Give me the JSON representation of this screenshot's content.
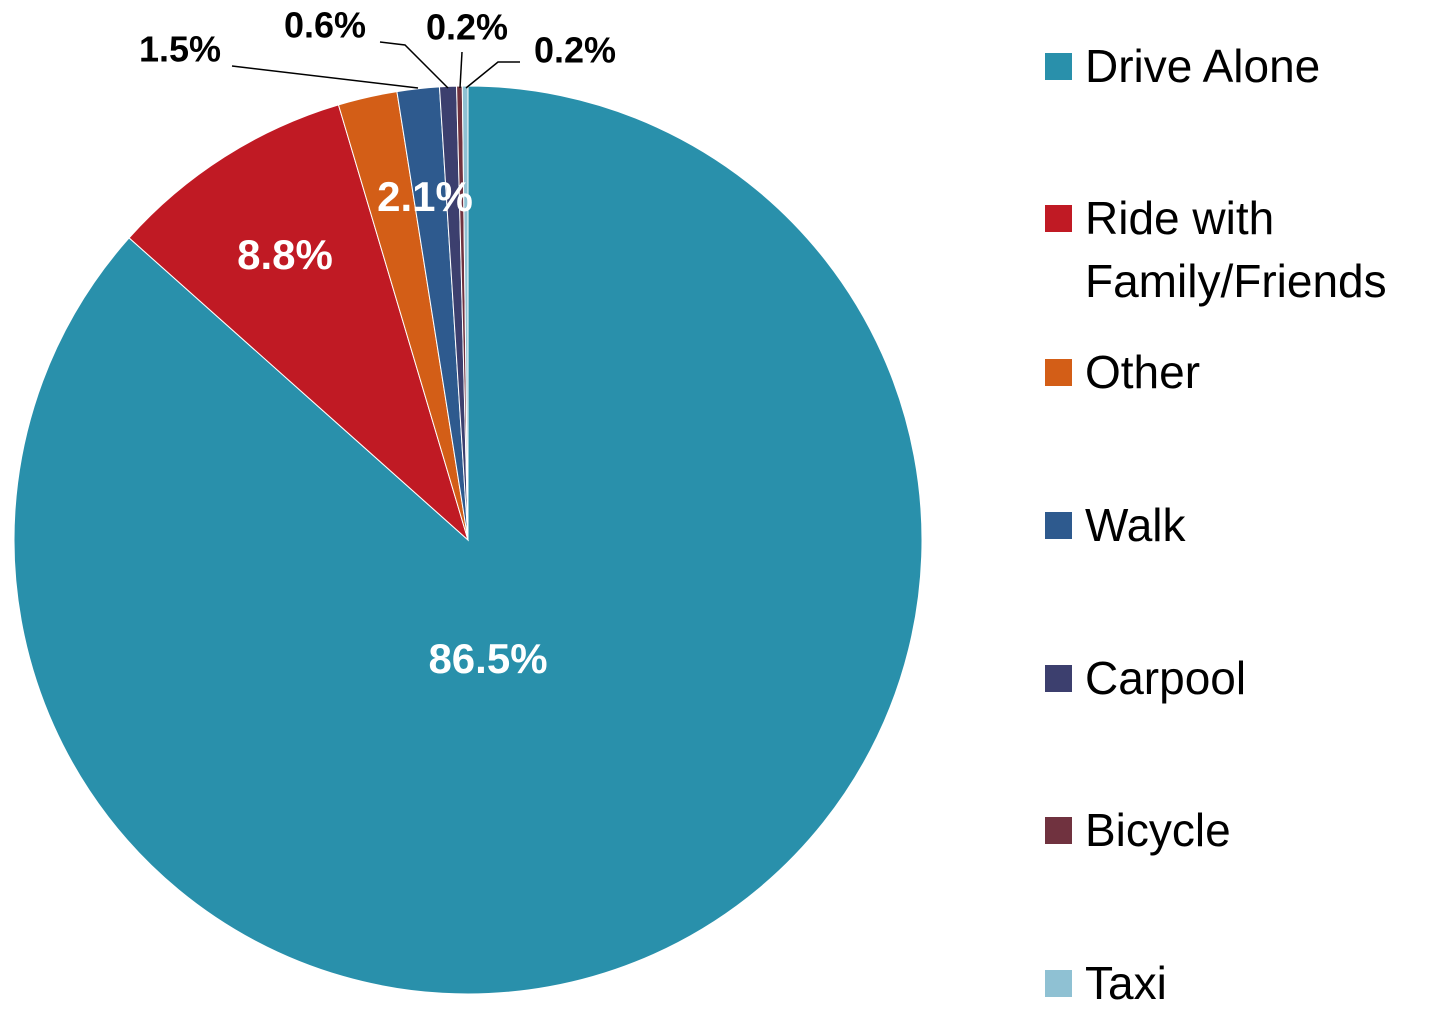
{
  "chart_data": {
    "type": "pie",
    "categories": [
      "Drive Alone",
      "Ride with Family/Friends",
      "Other",
      "Walk",
      "Carpool",
      "Bicycle",
      "Taxi"
    ],
    "values": [
      86.5,
      8.8,
      2.1,
      1.5,
      0.6,
      0.2,
      0.2
    ],
    "value_labels": [
      "86.5%",
      "8.8%",
      "2.1%",
      "1.5%",
      "0.6%",
      "0.2%",
      "0.2%"
    ],
    "colors": [
      "#2990ab",
      "#c01a24",
      "#d35e17",
      "#2e5a8e",
      "#3c3f6e",
      "#70323f",
      "#8fc1d3"
    ],
    "legend": "right"
  }
}
